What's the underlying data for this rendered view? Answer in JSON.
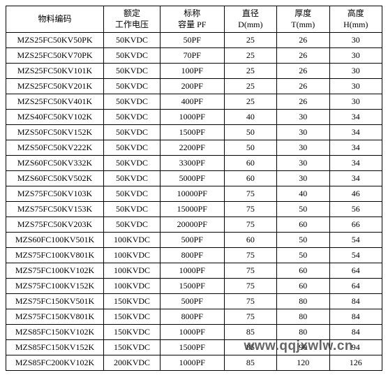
{
  "table": {
    "columns": [
      {
        "line1": "物料编码",
        "line2": ""
      },
      {
        "line1": "额定",
        "line2": "工作电压"
      },
      {
        "line1": "标称",
        "line2": "容量 PF"
      },
      {
        "line1": "直径",
        "line2": "D(mm)"
      },
      {
        "line1": "厚度",
        "line2": "T(mm)"
      },
      {
        "line1": "高度",
        "line2": "H(mm)"
      }
    ],
    "rows": [
      [
        "MZS25FC50KV50PK",
        "50KVDC",
        "50PF",
        "25",
        "26",
        "30"
      ],
      [
        "MZS25FC50KV70PK",
        "50KVDC",
        "70PF",
        "25",
        "26",
        "30"
      ],
      [
        "MZS25FC50KV101K",
        "50KVDC",
        "100PF",
        "25",
        "26",
        "30"
      ],
      [
        "MZS25FC50KV201K",
        "50KVDC",
        "200PF",
        "25",
        "26",
        "30"
      ],
      [
        "MZS25FC50KV401K",
        "50KVDC",
        "400PF",
        "25",
        "26",
        "30"
      ],
      [
        "MZS40FC50KV102K",
        "50KVDC",
        "1000PF",
        "40",
        "30",
        "34"
      ],
      [
        "MZS50FC50KV152K",
        "50KVDC",
        "1500PF",
        "50",
        "30",
        "34"
      ],
      [
        "MZS50FC50KV222K",
        "50KVDC",
        "2200PF",
        "50",
        "30",
        "34"
      ],
      [
        "MZS60FC50KV332K",
        "50KVDC",
        "3300PF",
        "60",
        "30",
        "34"
      ],
      [
        "MZS60FC50KV502K",
        "50KVDC",
        "5000PF",
        "60",
        "30",
        "34"
      ],
      [
        "MZS75FC50KV103K",
        "50KVDC",
        "10000PF",
        "75",
        "40",
        "46"
      ],
      [
        "MZS75FC50KV153K",
        "50KVDC",
        "15000PF",
        "75",
        "50",
        "56"
      ],
      [
        "MZS75FC50KV203K",
        "50KVDC",
        "20000PF",
        "75",
        "60",
        "66"
      ],
      [
        "MZS60FC100KV501K",
        "100KVDC",
        "500PF",
        "60",
        "50",
        "54"
      ],
      [
        "MZS75FC100KV801K",
        "100KVDC",
        "800PF",
        "75",
        "50",
        "54"
      ],
      [
        "MZS75FC100KV102K",
        "100KVDC",
        "1000PF",
        "75",
        "60",
        "64"
      ],
      [
        "MZS75FC100KV152K",
        "100KVDC",
        "1500PF",
        "75",
        "60",
        "64"
      ],
      [
        "MZS75FC150KV501K",
        "150KVDC",
        "500PF",
        "75",
        "80",
        "84"
      ],
      [
        "MZS75FC150KV801K",
        "150KVDC",
        "800PF",
        "75",
        "80",
        "84"
      ],
      [
        "MZS85FC150KV102K",
        "150KVDC",
        "1000PF",
        "85",
        "80",
        "84"
      ],
      [
        "MZS85FC150KV152K",
        "150KVDC",
        "1500PF",
        "85",
        "90",
        "94"
      ],
      [
        "MZS85FC200KV102K",
        "200KVDC",
        "1000PF",
        "85",
        "120",
        "126"
      ]
    ]
  },
  "watermark": "www.qqjxwlw.cn"
}
